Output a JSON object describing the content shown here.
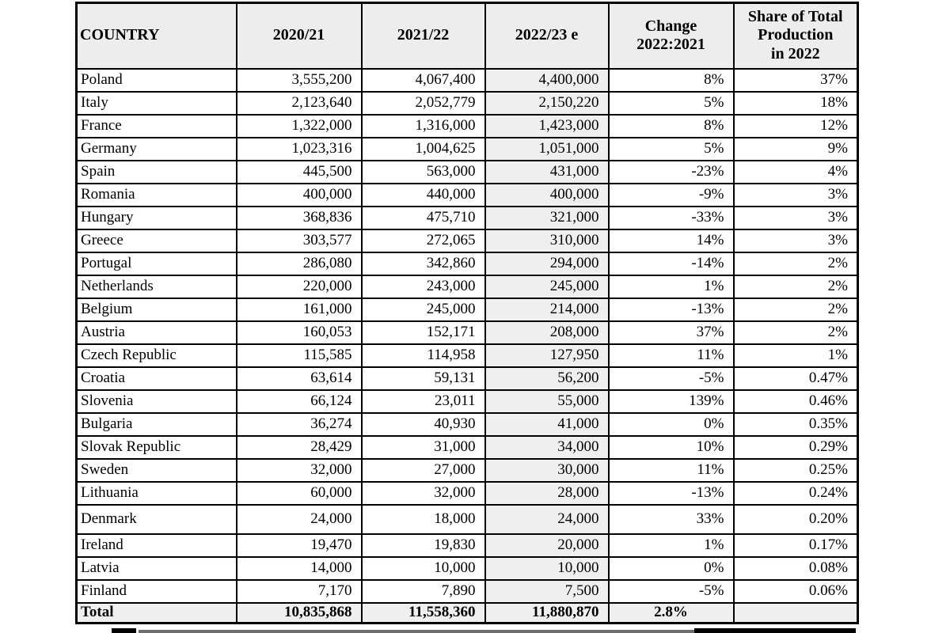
{
  "table": {
    "columns": [
      "COUNTRY",
      "2020/21",
      "2021/22",
      "2022/23 e",
      "Change\n2022:2021",
      "Share of Total\nProduction\nin 2022"
    ],
    "rows": [
      [
        "Poland",
        "3,555,200",
        "4,067,400",
        "4,400,000",
        "8%",
        "37%"
      ],
      [
        "Italy",
        "2,123,640",
        "2,052,779",
        "2,150,220",
        "5%",
        "18%"
      ],
      [
        "France",
        "1,322,000",
        "1,316,000",
        "1,423,000",
        "8%",
        "12%"
      ],
      [
        "Germany",
        "1,023,316",
        "1,004,625",
        "1,051,000",
        "5%",
        "9%"
      ],
      [
        "Spain",
        "445,500",
        "563,000",
        "431,000",
        "-23%",
        "4%"
      ],
      [
        "Romania",
        "400,000",
        "440,000",
        "400,000",
        "-9%",
        "3%"
      ],
      [
        "Hungary",
        "368,836",
        "475,710",
        "321,000",
        "-33%",
        "3%"
      ],
      [
        "Greece",
        "303,577",
        "272,065",
        "310,000",
        "14%",
        "3%"
      ],
      [
        "Portugal",
        "286,080",
        "342,860",
        "294,000",
        "-14%",
        "2%"
      ],
      [
        "Netherlands",
        "220,000",
        "243,000",
        "245,000",
        "1%",
        "2%"
      ],
      [
        "Belgium",
        "161,000",
        "245,000",
        "214,000",
        "-13%",
        "2%"
      ],
      [
        "Austria",
        "160,053",
        "152,171",
        "208,000",
        "37%",
        "2%"
      ],
      [
        "Czech Republic",
        "115,585",
        "114,958",
        "127,950",
        "11%",
        "1%"
      ],
      [
        "Croatia",
        "63,614",
        "59,131",
        "56,200",
        "-5%",
        "0.47%"
      ],
      [
        "Slovenia",
        "66,124",
        "23,011",
        "55,000",
        "139%",
        "0.46%"
      ],
      [
        "Bulgaria",
        "36,274",
        "40,930",
        "41,000",
        "0%",
        "0.35%"
      ],
      [
        "Slovak Republic",
        "28,429",
        "31,000",
        "34,000",
        "10%",
        "0.29%"
      ],
      [
        "Sweden",
        "32,000",
        "27,000",
        "30,000",
        "11%",
        "0.25%"
      ],
      [
        "Lithuania",
        "60,000",
        "32,000",
        "28,000",
        "-13%",
        "0.24%"
      ],
      [
        "Denmark",
        "24,000",
        "18,000",
        "24,000",
        "33%",
        "0.20%"
      ],
      [
        "Ireland",
        "19,470",
        "19,830",
        "20,000",
        "1%",
        "0.17%"
      ],
      [
        "Latvia",
        "14,000",
        "10,000",
        "10,000",
        "0%",
        "0.08%"
      ],
      [
        "Finland",
        "7,170",
        "7,890",
        "7,500",
        "-5%",
        "0.06%"
      ]
    ],
    "total": {
      "label": "Total",
      "y2020_21": "10,835,868",
      "y2021_22": "11,558,360",
      "y2022_23": "11,880,870",
      "change": "2.8%",
      "share": ""
    }
  },
  "colors": {
    "header_bg": "#ededed",
    "shaded_column_bg": "#efefef",
    "total_row_bg": "#efefef",
    "border": "#000000",
    "text": "#000000"
  }
}
